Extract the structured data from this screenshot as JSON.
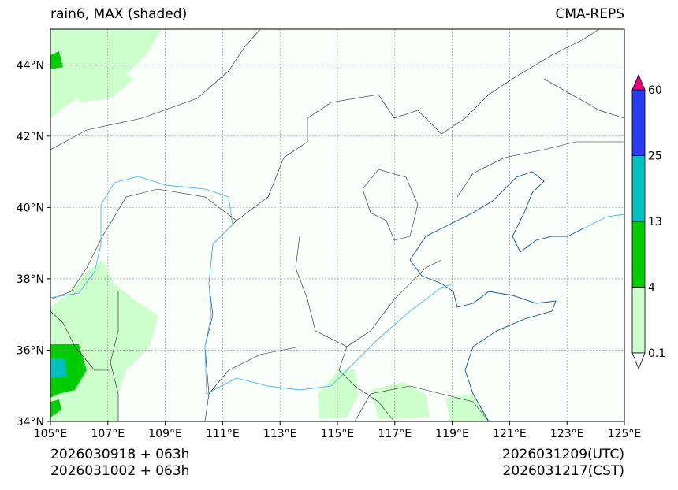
{
  "title_left": "rain6, MAX (shaded)",
  "title_right": "CMA-REPS",
  "footer": {
    "init_utc": "2026030918  +  063h",
    "init_cst": "2026031002  +  063h",
    "valid_utc": "2026031209(UTC)",
    "valid_cst": "2026031217(CST)"
  },
  "map": {
    "lon_range": [
      105,
      125
    ],
    "lat_range": [
      34,
      45
    ],
    "lon_ticks": [
      105,
      107,
      109,
      111,
      113,
      115,
      117,
      119,
      121,
      123,
      125
    ],
    "lon_labels": [
      "105°E",
      "107°E",
      "109°E",
      "111°E",
      "113°E",
      "115°E",
      "117°E",
      "119°E",
      "121°E",
      "123°E",
      "125°E"
    ],
    "lat_ticks": [
      34,
      36,
      38,
      40,
      42,
      44
    ],
    "lat_labels": [
      "34°N",
      "36°N",
      "38°N",
      "40°N",
      "42°N",
      "44°N"
    ]
  },
  "colorbar": {
    "levels": [
      0.1,
      4,
      13,
      25,
      60
    ],
    "labels": [
      "0.1",
      "4",
      "13",
      "25",
      "60"
    ],
    "colors": [
      "#ccffcc",
      "#00cc00",
      "#00bfbf",
      "#2a3cf0"
    ],
    "over_color": "#e6007e",
    "under_color": "#ffffff"
  }
}
